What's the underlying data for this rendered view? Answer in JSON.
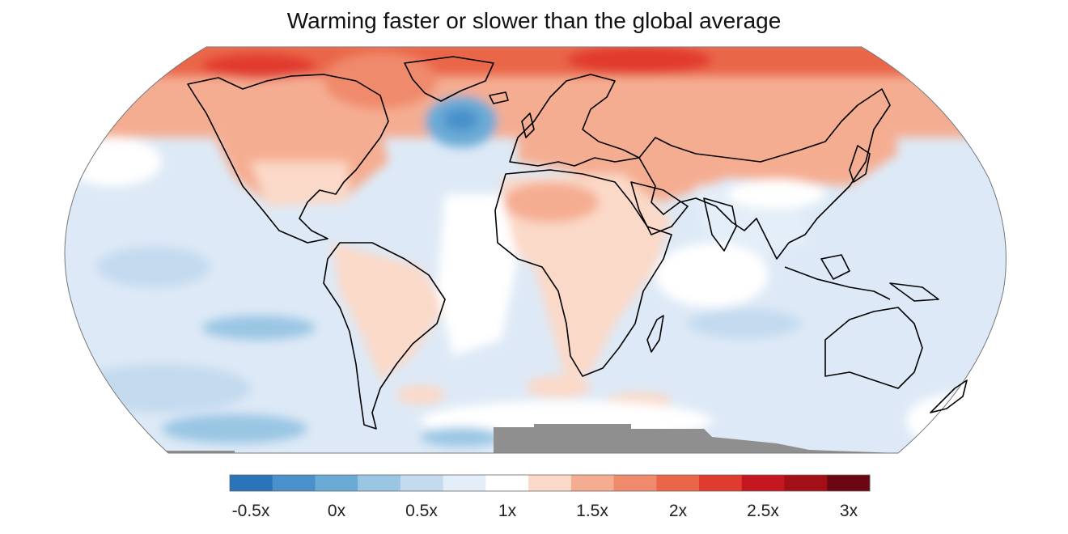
{
  "title": "Warming faster or slower than the global average",
  "map": {
    "projection": "robinson",
    "continent_fill_note": "warming ratio shading",
    "no_data_color": "#8f8f8f",
    "ocean_base_color": "#dde9f6",
    "coastline_color": "#000000"
  },
  "legend": {
    "colors": [
      "#2b74b8",
      "#4a90cb",
      "#6aabd6",
      "#9ac6e4",
      "#c3daef",
      "#e3eef8",
      "#ffffff",
      "#fbd9c8",
      "#f5ad92",
      "#f08a6c",
      "#ea6648",
      "#e13a2f",
      "#c3161f",
      "#a20f16",
      "#6b0612"
    ],
    "labels": [
      "-0.5x",
      "0x",
      "0.5x",
      "1x",
      "1.5x",
      "2x",
      "2.5x",
      "3x"
    ]
  }
}
